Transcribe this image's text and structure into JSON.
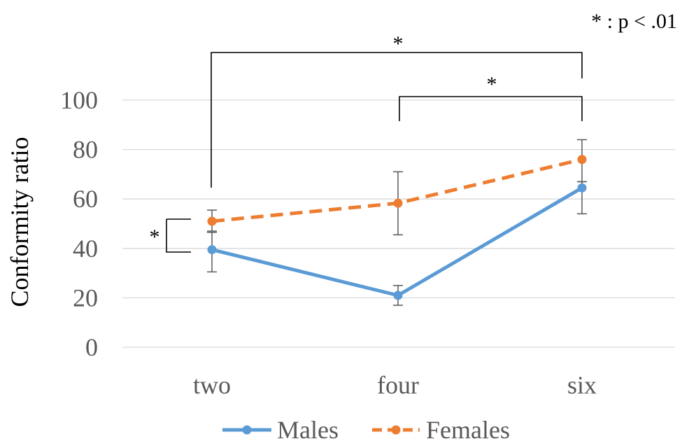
{
  "chart_data": {
    "type": "line",
    "title": "",
    "xlabel": "",
    "ylabel": "Conformity ratio",
    "categories": [
      "two",
      "four",
      "six"
    ],
    "ylim": [
      0,
      100
    ],
    "yticks": [
      0,
      20,
      40,
      60,
      80,
      100
    ],
    "grid": true,
    "legend_position": "bottom",
    "series": [
      {
        "name": "Males",
        "values": [
          39.5,
          21,
          64.5
        ],
        "error_low": [
          30.5,
          17,
          54
        ],
        "error_high": [
          46.5,
          25,
          67
        ],
        "color": "#5b9bd5",
        "style": "solid"
      },
      {
        "name": "Females",
        "values": [
          51,
          58.3,
          76
        ],
        "error_low": [
          47,
          45.5,
          67
        ],
        "error_high": [
          55.5,
          71,
          84
        ],
        "color": "#ed7d31",
        "style": "dashed"
      }
    ],
    "significance_note": "* : p < .01",
    "significance_marker": "*"
  }
}
